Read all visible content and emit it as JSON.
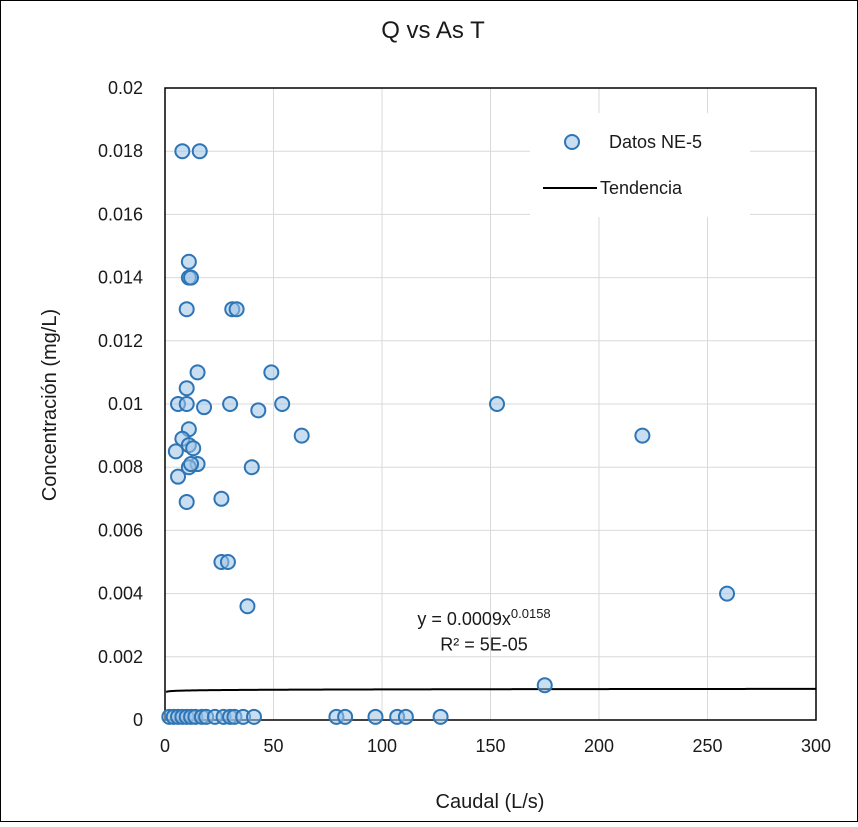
{
  "chart_data": {
    "type": "scatter",
    "title": "Q vs As T",
    "xlabel": "Caudal (L/s)",
    "ylabel": "Concentración (mg/L)",
    "xlim": [
      0,
      300
    ],
    "ylim": [
      0,
      0.02
    ],
    "xticks": [
      0,
      50,
      100,
      150,
      200,
      250,
      300
    ],
    "yticks": [
      0,
      0.002,
      0.004,
      0.006,
      0.008,
      0.01,
      0.012,
      0.014,
      0.016,
      0.018,
      0.02
    ],
    "xtick_labels": [
      "0",
      "50",
      "100",
      "150",
      "200",
      "250",
      "300"
    ],
    "ytick_labels": [
      "0",
      "0.002",
      "0.004",
      "0.006",
      "0.008",
      "0.01",
      "0.012",
      "0.014",
      "0.016",
      "0.018",
      "0.02"
    ],
    "grid": true,
    "legend_position": "top-right",
    "series": [
      {
        "name": "Datos NE-5",
        "marker": "circle",
        "color": "#2e75b6",
        "fill": "#9dc3e6",
        "points": [
          [
            8,
            0.018
          ],
          [
            16,
            0.018
          ],
          [
            11,
            0.0145
          ],
          [
            11,
            0.014
          ],
          [
            12,
            0.014
          ],
          [
            10,
            0.013
          ],
          [
            31,
            0.013
          ],
          [
            33,
            0.013
          ],
          [
            15,
            0.011
          ],
          [
            49,
            0.011
          ],
          [
            10,
            0.0105
          ],
          [
            6,
            0.01
          ],
          [
            10,
            0.01
          ],
          [
            30,
            0.01
          ],
          [
            54,
            0.01
          ],
          [
            153,
            0.01
          ],
          [
            18,
            0.0099
          ],
          [
            43,
            0.0098
          ],
          [
            11,
            0.0092
          ],
          [
            63,
            0.009
          ],
          [
            220,
            0.009
          ],
          [
            8,
            0.0089
          ],
          [
            11,
            0.0087
          ],
          [
            13,
            0.0086
          ],
          [
            5,
            0.0085
          ],
          [
            15,
            0.0081
          ],
          [
            40,
            0.008
          ],
          [
            11,
            0.008
          ],
          [
            12,
            0.0081
          ],
          [
            6,
            0.0077
          ],
          [
            26,
            0.007
          ],
          [
            10,
            0.0069
          ],
          [
            26,
            0.005
          ],
          [
            29,
            0.005
          ],
          [
            259,
            0.004
          ],
          [
            38,
            0.0036
          ],
          [
            175,
            0.0011
          ],
          [
            2,
            0.0001
          ],
          [
            4,
            0.0001
          ],
          [
            6,
            0.0001
          ],
          [
            8,
            0.0001
          ],
          [
            10,
            0.0001
          ],
          [
            12,
            0.0001
          ],
          [
            14,
            0.0001
          ],
          [
            17,
            0.0001
          ],
          [
            19,
            0.0001
          ],
          [
            23,
            0.0001
          ],
          [
            27,
            0.0001
          ],
          [
            30,
            0.0001
          ],
          [
            32,
            0.0001
          ],
          [
            36,
            0.0001
          ],
          [
            41,
            0.0001
          ],
          [
            79,
            0.0001
          ],
          [
            83,
            0.0001
          ],
          [
            97,
            0.0001
          ],
          [
            107,
            0.0001
          ],
          [
            111,
            0.0001
          ],
          [
            127,
            0.0001
          ]
        ]
      },
      {
        "name": "Tendencia",
        "type": "line",
        "color": "#000000",
        "equation": "y = 0.0009x^0.0158",
        "coefficient": 0.0009,
        "exponent": 0.0158,
        "x_range": [
          0.5,
          300
        ]
      }
    ],
    "annotations": {
      "equation_main": "y = 0.0009x",
      "equation_exp": "0.0158",
      "equation_anchor": [
        147,
        0.003
      ],
      "r2_text": "R² = 5E-05",
      "r2_anchor": [
        147,
        0.0022
      ]
    }
  }
}
